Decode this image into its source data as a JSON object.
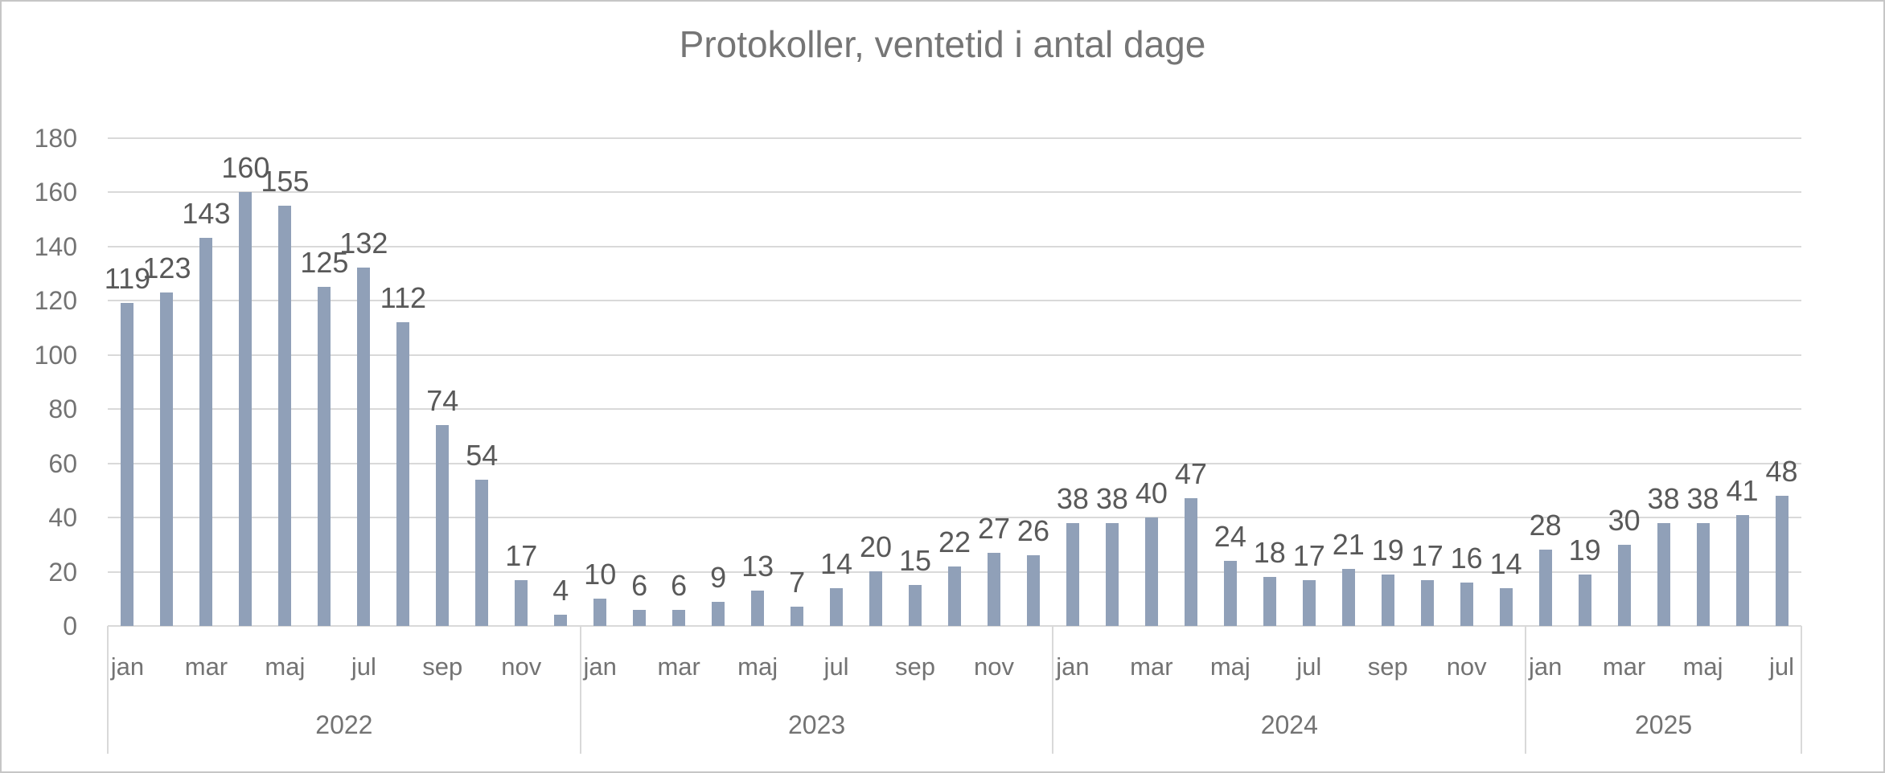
{
  "frame": {
    "background": "#FFFFFF",
    "border_color": "#C6C6C6"
  },
  "chart_data": {
    "type": "bar",
    "title": "Protokoller, ventetid i antal dage",
    "xlabel": "",
    "ylabel": "",
    "ylim": [
      0,
      180
    ],
    "y_tick_labels": [
      "0",
      "20",
      "40",
      "60",
      "80",
      "100",
      "120",
      "140",
      "160",
      "180"
    ],
    "grid": true,
    "legend": false,
    "data_labels": true,
    "title_color": "#757575",
    "bar_color": "#90A0B8",
    "grid_color": "#D9D9D9",
    "value_label_color": "#595959",
    "axis_label_color": "#737373",
    "groups": [
      {
        "year": "2022",
        "values": [
          119,
          123,
          143,
          160,
          155,
          125,
          132,
          112,
          74,
          54,
          17,
          4
        ],
        "month_ticks": [
          {
            "label": "jan",
            "slot": 0
          },
          {
            "label": "mar",
            "slot": 2
          },
          {
            "label": "maj",
            "slot": 4
          },
          {
            "label": "jul",
            "slot": 6
          },
          {
            "label": "sep",
            "slot": 8
          },
          {
            "label": "nov",
            "slot": 10
          }
        ]
      },
      {
        "year": "2023",
        "values": [
          10,
          6,
          6,
          9,
          13,
          7,
          14,
          20,
          15,
          22,
          27,
          26
        ],
        "month_ticks": [
          {
            "label": "jan",
            "slot": 0
          },
          {
            "label": "mar",
            "slot": 2
          },
          {
            "label": "maj",
            "slot": 4
          },
          {
            "label": "jul",
            "slot": 6
          },
          {
            "label": "sep",
            "slot": 8
          },
          {
            "label": "nov",
            "slot": 10
          }
        ]
      },
      {
        "year": "2024",
        "values": [
          38,
          38,
          40,
          47,
          24,
          18,
          17,
          21,
          19,
          17,
          16,
          14
        ],
        "month_ticks": [
          {
            "label": "jan",
            "slot": 0
          },
          {
            "label": "mar",
            "slot": 2
          },
          {
            "label": "maj",
            "slot": 4
          },
          {
            "label": "jul",
            "slot": 6
          },
          {
            "label": "sep",
            "slot": 8
          },
          {
            "label": "nov",
            "slot": 10
          }
        ]
      },
      {
        "year": "2025",
        "values": [
          28,
          19,
          30,
          38,
          38,
          41,
          48
        ],
        "month_ticks": [
          {
            "label": "jan",
            "slot": 0
          },
          {
            "label": "mar",
            "slot": 2
          },
          {
            "label": "maj",
            "slot": 4
          },
          {
            "label": "jul",
            "slot": 6
          }
        ]
      }
    ]
  }
}
